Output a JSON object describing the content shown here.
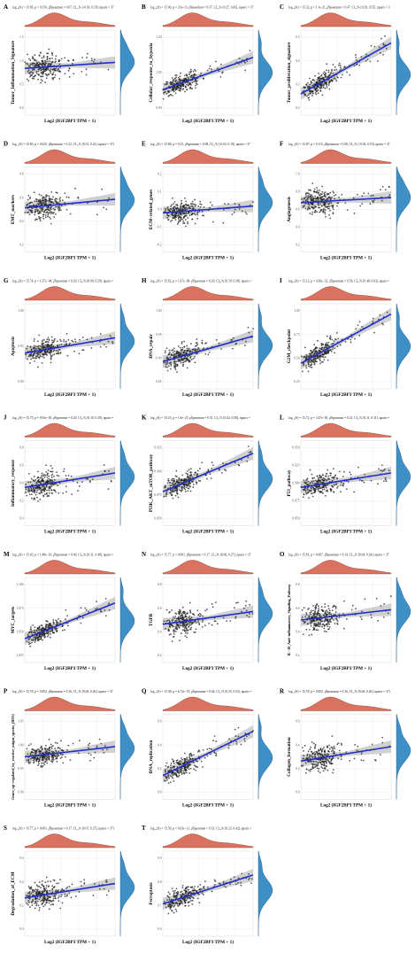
{
  "figure": {
    "colors": {
      "point": "#222222",
      "line": "#1f2fc9",
      "band": "#bdbdbd",
      "grid": "#e6e6e6",
      "top_density": "#d9735f",
      "right_density": "#3d8fc6"
    }
  },
  "chart_data": [
    {
      "id": "A",
      "type": "scatter",
      "ylabel": "Tumor_Inflammation_Signature",
      "xlabel": "Log2 (IGF2BP3 TPM + 1)",
      "stat": "log₁₀(S) = 15.86, p = 0.156, ρ̂Spearman = 0.07, CI₉₅% [-0.03, 0.18], npairs = 37",
      "yticks": [
        "1.5",
        "1.0",
        "0.5",
        "0.0"
      ],
      "ylim": [
        0,
        1.6
      ],
      "fit": [
        0.55,
        0.62
      ],
      "spread": 0.32,
      "shape": "uniform"
    },
    {
      "id": "B",
      "type": "scatter",
      "ylabel": "Cellular_response_to_hypoxia",
      "xlabel": "Log2 (IGF2BP3 TPM + 1)",
      "stat": "log₁₀(S) = 15.90, p = 2.6e-13, ρ̂Spearman = 0.37, CI₉₅% [0.27, 0.45], npairs = 37",
      "yticks": [
        "1.20",
        "1.05",
        "0.90"
      ],
      "ylim": [
        0.85,
        1.25
      ],
      "fit": [
        0.3,
        0.68
      ],
      "spread": 0.22,
      "shape": "uniform"
    },
    {
      "id": "C",
      "type": "scatter",
      "ylabel": "Tumor_proliferation_signature",
      "xlabel": "Log2 (IGF2BP3 TPM + 1)",
      "stat": "log₁₀(S) = 15.32, p = 1.1e-21, ρ̂Spearman = 0.47, CI₉₅% [0.39, 0.55], npairs = 3",
      "yticks": [
        "0.5",
        "0.4",
        "0.3",
        "0.2"
      ],
      "ylim": [
        0.15,
        0.6
      ],
      "fit": [
        0.25,
        0.85
      ],
      "spread": 0.24,
      "shape": "uniform"
    },
    {
      "id": "D",
      "type": "scatter",
      "ylabel": "EMT_markers",
      "xlabel": "Log2 (IGF2BP3 TPM + 1)",
      "stat": "log₁₀(S) = 15.85, p = 0.025, ρ̂Spearman = 0.12, CI₉₅% [0.01, 0.22], npairs = 371",
      "yticks": [
        "0.8",
        "0.6",
        "0.4",
        "0.2"
      ],
      "ylim": [
        0.1,
        0.9
      ],
      "fit": [
        0.52,
        0.62
      ],
      "spread": 0.3,
      "shape": "uniform"
    },
    {
      "id": "E",
      "type": "scatter",
      "ylabel": "ECM−related_genes",
      "xlabel": "Log2 (IGF2BP3 TPM + 1)",
      "stat": "log₁₀(S) = 15.88, p = 0.15, ρ̂Spearman = 0.08, CI₉₅% [-0.03, 0.18], npairs = 37",
      "yticks": [
        "0.2",
        "0.1",
        "0.0",
        "-0.1",
        "-0.2"
      ],
      "ylim": [
        -0.25,
        0.25
      ],
      "fit": [
        0.46,
        0.54
      ],
      "spread": 0.28,
      "shape": "uniform"
    },
    {
      "id": "F",
      "type": "scatter",
      "ylabel": "Angiogenesis",
      "xlabel": "Log2 (IGF2BP3 TPM + 1)",
      "stat": "log₁₀(S) = 15.87, p = 0.115, ρ̂Spearman = 0.08, CI₉₅% [-0.02, 0.19], npairs = 37",
      "yticks": [
        "1.0",
        "0.8",
        "0.6",
        "0.4",
        "0.2"
      ],
      "ylim": [
        0.1,
        1.05
      ],
      "fit": [
        0.58,
        0.64
      ],
      "spread": 0.32,
      "shape": "uniform"
    },
    {
      "id": "G",
      "type": "scatter",
      "ylabel": "Apoptosis",
      "xlabel": "Log2 (IGF2BP3 TPM + 1)",
      "stat": "log₁₀(S) = 15.74, p = 1.37e−04, ρ̂Spearman = 0.20, CI₉₅% [0.09, 0.29], npairs =",
      "yticks": [
        "1.00",
        "0.95",
        "0.90"
      ],
      "ylim": [
        0.86,
        1.04
      ],
      "fit": [
        0.42,
        0.6
      ],
      "spread": 0.26,
      "shape": "uniform"
    },
    {
      "id": "H",
      "type": "scatter",
      "ylabel": "DNA_repair",
      "xlabel": "Log2 (IGF2BP3 TPM + 1)",
      "stat": "log₁₀(S) = 15.62, p = 1.67e−08, ρ̂Spearman = 0.29, CI₉₅% [0.19, 0.38], npairs =",
      "yticks": [
        "1.00",
        "0.95",
        "0.90",
        "0.85"
      ],
      "ylim": [
        0.82,
        1.04
      ],
      "fit": [
        0.32,
        0.62
      ],
      "spread": 0.26,
      "shape": "uniform"
    },
    {
      "id": "I",
      "type": "scatter",
      "ylabel": "G2M_checkpoint",
      "xlabel": "Log2 (IGF2BP3 TPM + 1)",
      "stat": "log₁₀(S) = 15.13, p = 4.36e−32, ρ̂Spearman = 0.56, CI₉₅% [0.48, 0.63], npairs =",
      "yticks": [
        "1.00",
        "0.75",
        "0.50",
        "0.25"
      ],
      "ylim": [
        0.15,
        1.1
      ],
      "fit": [
        0.3,
        0.88
      ],
      "spread": 0.24,
      "shape": "uniform"
    },
    {
      "id": "J",
      "type": "scatter",
      "ylabel": "Inflammatory_response",
      "xlabel": "Log2 (IGF2BP3 TPM + 1)",
      "stat": "log₁₀(S) = 15.75, p = 9.93e−05, ρ̂Spearman = 0.20, CI₉₅% [0.10, 0.30], npairs =",
      "yticks": [
        "0.8",
        "0.6",
        "0.4",
        "0.2",
        "0.0"
      ],
      "ylim": [
        -0.05,
        0.9
      ],
      "fit": [
        0.45,
        0.62
      ],
      "spread": 0.32,
      "shape": "uniform"
    },
    {
      "id": "K",
      "type": "scatter",
      "ylabel": "PI3K_AKT_mTOR_pathway",
      "xlabel": "Log2 (IGF2BP3 TPM + 1)",
      "stat": "log₁₀(S) = 15.25, p = 1.6e−25, ρ̂Spearman = 0.51, CI₉₅% [0.42, 0.58], npairs =",
      "yticks": [
        "0.925",
        "0.900",
        "0.875",
        "0.850"
      ],
      "ylim": [
        0.83,
        0.94
      ],
      "fit": [
        0.4,
        0.85
      ],
      "spread": 0.24,
      "shape": "uniform"
    },
    {
      "id": "L",
      "type": "scatter",
      "ylabel": "P53_pathway",
      "xlabel": "Log2 (IGF2BP3 TPM + 1)",
      "stat": "log₁₀(S) = 15.72, p = 3.47e−05, ρ̂Spearman = 0.21, CI₉₅% [0.11, 0.31], npairs =",
      "yticks": [
        "0.950",
        "0.925",
        "0.900",
        "0.875",
        "0.850"
      ],
      "ylim": [
        0.84,
        0.96
      ],
      "fit": [
        0.45,
        0.62
      ],
      "spread": 0.26,
      "shape": "uniform"
    },
    {
      "id": "M",
      "type": "scatter",
      "ylabel": "MYC_targets",
      "xlabel": "Log2 (IGF2BP3 TPM + 1)",
      "stat": "log₁₀(S) = 15.43, p = 1.48e−19, ρ̂Spearman = 0.40, CI₉₅% [0.31, 0.48], npairs =",
      "yticks": [
        "1.100",
        "1.075",
        "1.050",
        "1.025"
      ],
      "ylim": [
        1.01,
        1.11
      ],
      "fit": [
        0.28,
        0.7
      ],
      "spread": 0.22,
      "shape": "uniform"
    },
    {
      "id": "N",
      "type": "scatter",
      "ylabel": "TGFB",
      "xlabel": "Log2 (IGF2BP3 TPM + 1)",
      "stat": "log₁₀(S) = 15.77, p = 0.001, ρ̂Spearman = 0.17, CI₉₅% [0.06, 0.27], npairs = 37",
      "yticks": [
        "0.8",
        "0.6",
        "0.4",
        "0.2"
      ],
      "ylim": [
        0.1,
        0.9
      ],
      "fit": [
        0.45,
        0.6
      ],
      "spread": 0.32,
      "shape": "uniform"
    },
    {
      "id": "O",
      "type": "scatter",
      "ylabel": "IL−10_Anti−inflammatory_Signaling_Pathway",
      "xlabel": "Log2 (IGF2BP3 TPM + 1)",
      "stat": "log₁₀(S) = 15.81, p = 0.007, ρ̂Spearman = 0.14, CI₉₅% [0.04, 0.24], npairs = 37",
      "yticks": [
        "0.8",
        "0.6",
        "0.4",
        "0.2"
      ],
      "ylim": [
        0.1,
        0.9
      ],
      "fit": [
        0.5,
        0.62
      ],
      "spread": 0.3,
      "shape": "uniform"
    },
    {
      "id": "P",
      "type": "scatter",
      "ylabel": "Genes_up−regulated_by_reactive_oxigen_species_(ROS)",
      "xlabel": "Log2 (IGF2BP3 TPM + 1)",
      "stat": "log₁₀(S) = 15.78, p = 0.002, ρ̂Spearman = 0.16, CI₉₅% [0.06, 0.26], npairs = 37",
      "yticks": [
        "1.05",
        "1.00",
        "0.95",
        "0.90"
      ],
      "ylim": [
        0.87,
        1.08
      ],
      "fit": [
        0.5,
        0.62
      ],
      "spread": 0.26,
      "shape": "uniform"
    },
    {
      "id": "Q",
      "type": "scatter",
      "ylabel": "DNA_replication",
      "xlabel": "Log2 (IGF2BP3 TPM + 1)",
      "stat": "log₁₀(S) = 15.38, p = 6.72e−19, ρ̂Spearman = 0.44, CI₉₅% [0.35, 0.52], npairs =",
      "yticks": [
        "0.6",
        "0.4",
        "0.2",
        "0.0"
      ],
      "ylim": [
        -0.05,
        0.7
      ],
      "fit": [
        0.28,
        0.8
      ],
      "spread": 0.26,
      "shape": "uniform"
    },
    {
      "id": "R",
      "type": "scatter",
      "ylabel": "Collagen_formation",
      "xlabel": "Log2 (IGF2BP3 TPM + 1)",
      "stat": "log₁₀(S) = 15.78, p = 0.002, ρ̂Spearman = 0.16, CI₉₅% [0.06, 0.26], npairs = 371",
      "yticks": [
        "0.6",
        "0.4",
        "0.2",
        "0.0"
      ],
      "ylim": [
        -0.05,
        0.7
      ],
      "fit": [
        0.45,
        0.62
      ],
      "spread": 0.32,
      "shape": "uniform"
    },
    {
      "id": "S",
      "type": "scatter",
      "ylabel": "Degradation_of_ECM",
      "xlabel": "Log2 (IGF2BP3 TPM + 1)",
      "stat": "log₁₀(S) = 15.77, p = 0.001, ρ̂Spearman = 0.17, CI₉₅% [0.07, 0.27], npairs = 371",
      "yticks": [
        "0.6",
        "0.4",
        "0.2",
        "0.0"
      ],
      "ylim": [
        -0.05,
        0.7
      ],
      "fit": [
        0.45,
        0.62
      ],
      "spread": 0.3,
      "shape": "uniform"
    },
    {
      "id": "T",
      "type": "scatter",
      "ylabel": "Ferroptosis",
      "xlabel": "Log2 (IGF2BP3 TPM + 1)",
      "stat": "log₁₀(S) = 15.56, p = 6.63e−11, ρ̂Spearman = 0.33, CI₉₅% [0.23, 0.42], npairs =",
      "yticks": [
        "0.9",
        "0.8",
        "0.7",
        "0.6"
      ],
      "ylim": [
        0.55,
        0.95
      ],
      "fit": [
        0.38,
        0.72
      ],
      "spread": 0.24,
      "shape": "uniform"
    }
  ]
}
